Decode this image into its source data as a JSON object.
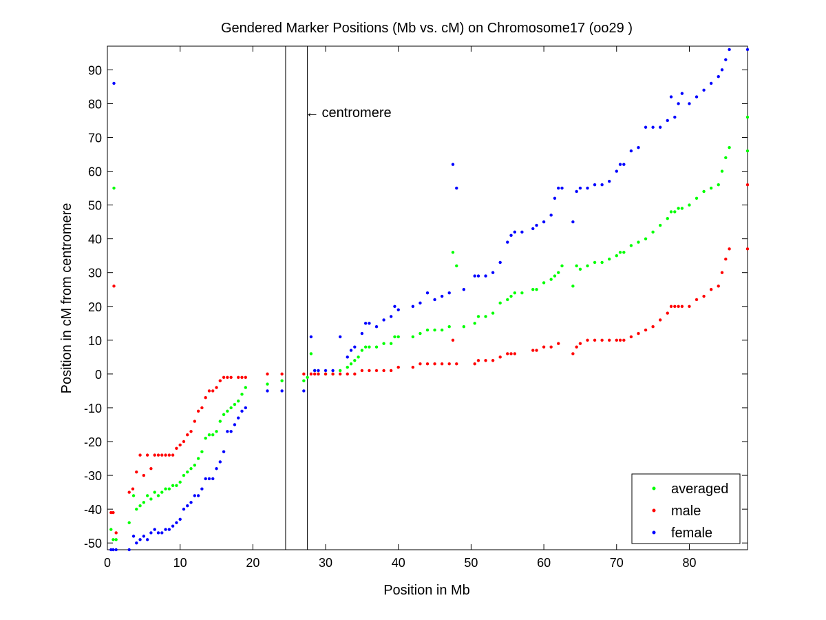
{
  "chart_data": {
    "type": "scatter",
    "title": "Gendered Marker Positions (Mb vs. cM) on Chromosome17 (oo29 )",
    "xlabel": "Position in Mb",
    "ylabel": "Position in cM from centromere",
    "xlim": [
      0,
      88
    ],
    "ylim": [
      -52,
      97
    ],
    "xticks": [
      0,
      10,
      20,
      30,
      40,
      50,
      60,
      70,
      80
    ],
    "yticks": [
      -50,
      -40,
      -30,
      -20,
      -10,
      0,
      10,
      20,
      30,
      40,
      50,
      60,
      70,
      80,
      90
    ],
    "grid": false,
    "legend_position": "bottom-right",
    "annotation": {
      "text": "centromere",
      "arrow_glyph": "←",
      "at": [
        27.2,
        76
      ],
      "vlines": [
        24.5,
        27.5
      ]
    },
    "series": [
      {
        "name": "averaged",
        "color": "#00ff00",
        "points": [
          [
            0.5,
            -46
          ],
          [
            0.8,
            -49
          ],
          [
            0.9,
            55
          ],
          [
            1.2,
            -49
          ],
          [
            3,
            -44
          ],
          [
            3.6,
            -36
          ],
          [
            4,
            -40
          ],
          [
            4.5,
            -39
          ],
          [
            5,
            -38
          ],
          [
            5.5,
            -36
          ],
          [
            6,
            -37
          ],
          [
            6.5,
            -35
          ],
          [
            7,
            -36
          ],
          [
            7.5,
            -35
          ],
          [
            8,
            -34
          ],
          [
            8.5,
            -34
          ],
          [
            9,
            -33
          ],
          [
            9.5,
            -33
          ],
          [
            10,
            -32
          ],
          [
            10.5,
            -30
          ],
          [
            11,
            -29
          ],
          [
            11.5,
            -28
          ],
          [
            12,
            -27
          ],
          [
            12.5,
            -25
          ],
          [
            13,
            -23
          ],
          [
            13.5,
            -19
          ],
          [
            14,
            -18
          ],
          [
            14.5,
            -18
          ],
          [
            15,
            -17
          ],
          [
            15.5,
            -14
          ],
          [
            16,
            -12
          ],
          [
            16.5,
            -11
          ],
          [
            17,
            -10
          ],
          [
            17.5,
            -9
          ],
          [
            18,
            -8
          ],
          [
            18.5,
            -6
          ],
          [
            19,
            -4
          ],
          [
            22,
            -3
          ],
          [
            24,
            -2
          ],
          [
            27,
            -2
          ],
          [
            27.5,
            -1
          ],
          [
            28,
            6
          ],
          [
            28.5,
            1
          ],
          [
            29,
            0
          ],
          [
            30,
            0
          ],
          [
            31,
            0
          ],
          [
            32,
            1
          ],
          [
            33,
            2
          ],
          [
            33.5,
            3
          ],
          [
            34,
            4
          ],
          [
            34.5,
            5
          ],
          [
            35,
            7
          ],
          [
            35.5,
            8
          ],
          [
            36,
            8
          ],
          [
            37,
            8
          ],
          [
            38,
            9
          ],
          [
            39,
            9
          ],
          [
            39.5,
            11
          ],
          [
            40,
            11
          ],
          [
            42,
            11
          ],
          [
            43,
            12
          ],
          [
            44,
            13
          ],
          [
            45,
            13
          ],
          [
            46,
            13
          ],
          [
            47,
            14
          ],
          [
            47.5,
            36
          ],
          [
            48,
            32
          ],
          [
            49,
            14
          ],
          [
            50.5,
            15
          ],
          [
            51,
            17
          ],
          [
            52,
            17
          ],
          [
            53,
            18
          ],
          [
            54,
            21
          ],
          [
            55,
            22
          ],
          [
            55.5,
            23
          ],
          [
            56,
            24
          ],
          [
            57,
            24
          ],
          [
            58.5,
            25
          ],
          [
            59,
            25
          ],
          [
            60,
            27
          ],
          [
            61,
            28
          ],
          [
            61.5,
            29
          ],
          [
            62,
            30
          ],
          [
            62.5,
            32
          ],
          [
            64,
            26
          ],
          [
            64.5,
            32
          ],
          [
            65,
            31
          ],
          [
            66,
            32
          ],
          [
            67,
            33
          ],
          [
            68,
            33
          ],
          [
            69,
            34
          ],
          [
            70,
            35
          ],
          [
            70.5,
            36
          ],
          [
            71,
            36
          ],
          [
            72,
            38
          ],
          [
            73,
            39
          ],
          [
            74,
            40
          ],
          [
            75,
            42
          ],
          [
            76,
            44
          ],
          [
            77,
            46
          ],
          [
            77.5,
            48
          ],
          [
            78,
            48
          ],
          [
            78.5,
            49
          ],
          [
            79,
            49
          ],
          [
            80,
            50
          ],
          [
            81,
            52
          ],
          [
            82,
            54
          ],
          [
            83,
            55
          ],
          [
            84,
            56
          ],
          [
            84.5,
            60
          ],
          [
            85,
            64
          ],
          [
            85.5,
            67
          ],
          [
            88,
            66
          ],
          [
            88,
            76
          ]
        ]
      },
      {
        "name": "male",
        "color": "#ff0000",
        "points": [
          [
            0.5,
            -41
          ],
          [
            0.8,
            -41
          ],
          [
            0.9,
            26
          ],
          [
            1.2,
            -47
          ],
          [
            3,
            -35
          ],
          [
            3.5,
            -34
          ],
          [
            4,
            -29
          ],
          [
            4.5,
            -24
          ],
          [
            5,
            -30
          ],
          [
            5.5,
            -24
          ],
          [
            6,
            -28
          ],
          [
            6.5,
            -24
          ],
          [
            7,
            -24
          ],
          [
            7.5,
            -24
          ],
          [
            8,
            -24
          ],
          [
            8.5,
            -24
          ],
          [
            9,
            -24
          ],
          [
            9.5,
            -22
          ],
          [
            10,
            -21
          ],
          [
            10.5,
            -20
          ],
          [
            11,
            -18
          ],
          [
            11.5,
            -17
          ],
          [
            12,
            -14
          ],
          [
            12.5,
            -11
          ],
          [
            13,
            -10
          ],
          [
            13.5,
            -7
          ],
          [
            14,
            -5
          ],
          [
            14.5,
            -5
          ],
          [
            15,
            -4
          ],
          [
            15.5,
            -2
          ],
          [
            16,
            -1
          ],
          [
            16.5,
            -1
          ],
          [
            17,
            -1
          ],
          [
            18,
            -1
          ],
          [
            18.5,
            -1
          ],
          [
            19,
            -1
          ],
          [
            22,
            0
          ],
          [
            24,
            0
          ],
          [
            27,
            0
          ],
          [
            28,
            0
          ],
          [
            28.5,
            0
          ],
          [
            29,
            0
          ],
          [
            30,
            0
          ],
          [
            31,
            0
          ],
          [
            32,
            0
          ],
          [
            33,
            0
          ],
          [
            34,
            0
          ],
          [
            35,
            1
          ],
          [
            36,
            1
          ],
          [
            37,
            1
          ],
          [
            38,
            1
          ],
          [
            39,
            1
          ],
          [
            40,
            2
          ],
          [
            42,
            2
          ],
          [
            43,
            3
          ],
          [
            44,
            3
          ],
          [
            45,
            3
          ],
          [
            46,
            3
          ],
          [
            47,
            3
          ],
          [
            47.5,
            10
          ],
          [
            48,
            3
          ],
          [
            50.5,
            3
          ],
          [
            51,
            4
          ],
          [
            52,
            4
          ],
          [
            53,
            4
          ],
          [
            54,
            5
          ],
          [
            55,
            6
          ],
          [
            55.5,
            6
          ],
          [
            56,
            6
          ],
          [
            58.5,
            7
          ],
          [
            59,
            7
          ],
          [
            60,
            8
          ],
          [
            61,
            8
          ],
          [
            62,
            9
          ],
          [
            64,
            6
          ],
          [
            64.5,
            8
          ],
          [
            65,
            9
          ],
          [
            66,
            10
          ],
          [
            67,
            10
          ],
          [
            68,
            10
          ],
          [
            69,
            10
          ],
          [
            70,
            10
          ],
          [
            70.5,
            10
          ],
          [
            71,
            10
          ],
          [
            72,
            11
          ],
          [
            73,
            12
          ],
          [
            74,
            13
          ],
          [
            75,
            14
          ],
          [
            76,
            16
          ],
          [
            77,
            18
          ],
          [
            77.5,
            20
          ],
          [
            78,
            20
          ],
          [
            78.5,
            20
          ],
          [
            79,
            20
          ],
          [
            80,
            20
          ],
          [
            81,
            22
          ],
          [
            82,
            23
          ],
          [
            83,
            25
          ],
          [
            84,
            26
          ],
          [
            84.5,
            30
          ],
          [
            85,
            34
          ],
          [
            85.5,
            37
          ],
          [
            88,
            37
          ],
          [
            88,
            56
          ]
        ]
      },
      {
        "name": "female",
        "color": "#0000ff",
        "points": [
          [
            0.5,
            -52
          ],
          [
            0.8,
            -52
          ],
          [
            0.9,
            86
          ],
          [
            1.2,
            -52
          ],
          [
            3,
            -52
          ],
          [
            3.6,
            -48
          ],
          [
            4,
            -50
          ],
          [
            4.5,
            -49
          ],
          [
            5,
            -48
          ],
          [
            5.5,
            -49
          ],
          [
            6,
            -47
          ],
          [
            6.5,
            -46
          ],
          [
            7,
            -47
          ],
          [
            7.5,
            -47
          ],
          [
            8,
            -46
          ],
          [
            8.5,
            -46
          ],
          [
            9,
            -45
          ],
          [
            9.5,
            -44
          ],
          [
            10,
            -43
          ],
          [
            10.5,
            -40
          ],
          [
            11,
            -39
          ],
          [
            11.5,
            -38
          ],
          [
            12,
            -36
          ],
          [
            12.5,
            -36
          ],
          [
            13,
            -34
          ],
          [
            13.5,
            -31
          ],
          [
            14,
            -31
          ],
          [
            14.5,
            -31
          ],
          [
            15,
            -28
          ],
          [
            15.5,
            -26
          ],
          [
            16,
            -23
          ],
          [
            16.5,
            -17
          ],
          [
            17,
            -17
          ],
          [
            17.5,
            -15
          ],
          [
            18,
            -13
          ],
          [
            18.5,
            -11
          ],
          [
            19,
            -10
          ],
          [
            22,
            -5
          ],
          [
            24,
            -5
          ],
          [
            27,
            -5
          ],
          [
            28,
            11
          ],
          [
            28.5,
            1
          ],
          [
            29,
            1
          ],
          [
            30,
            1
          ],
          [
            31,
            1
          ],
          [
            32,
            11
          ],
          [
            33,
            5
          ],
          [
            33.5,
            7
          ],
          [
            34,
            8
          ],
          [
            35,
            12
          ],
          [
            35.5,
            15
          ],
          [
            36,
            15
          ],
          [
            37,
            14
          ],
          [
            38,
            16
          ],
          [
            39,
            17
          ],
          [
            39.5,
            20
          ],
          [
            40,
            19
          ],
          [
            42,
            20
          ],
          [
            43,
            21
          ],
          [
            44,
            24
          ],
          [
            45,
            22
          ],
          [
            46,
            23
          ],
          [
            47,
            24
          ],
          [
            47.5,
            62
          ],
          [
            48,
            55
          ],
          [
            49,
            25
          ],
          [
            50.5,
            29
          ],
          [
            51,
            29
          ],
          [
            52,
            29
          ],
          [
            53,
            30
          ],
          [
            54,
            33
          ],
          [
            55,
            39
          ],
          [
            55.5,
            41
          ],
          [
            56,
            42
          ],
          [
            57,
            42
          ],
          [
            58.5,
            43
          ],
          [
            59,
            44
          ],
          [
            60,
            45
          ],
          [
            61,
            47
          ],
          [
            61.5,
            52
          ],
          [
            62,
            55
          ],
          [
            62.5,
            55
          ],
          [
            64,
            45
          ],
          [
            64.5,
            54
          ],
          [
            65,
            55
          ],
          [
            66,
            55
          ],
          [
            67,
            56
          ],
          [
            68,
            56
          ],
          [
            69,
            57
          ],
          [
            70,
            60
          ],
          [
            70.5,
            62
          ],
          [
            71,
            62
          ],
          [
            72,
            66
          ],
          [
            73,
            67
          ],
          [
            74,
            73
          ],
          [
            75,
            73
          ],
          [
            76,
            73
          ],
          [
            77,
            75
          ],
          [
            77.5,
            82
          ],
          [
            78,
            76
          ],
          [
            78.5,
            80
          ],
          [
            79,
            83
          ],
          [
            80,
            80
          ],
          [
            81,
            82
          ],
          [
            82,
            84
          ],
          [
            83,
            86
          ],
          [
            84,
            88
          ],
          [
            84.5,
            90
          ],
          [
            85,
            93
          ],
          [
            85.5,
            96
          ],
          [
            88,
            96
          ]
        ]
      }
    ]
  }
}
